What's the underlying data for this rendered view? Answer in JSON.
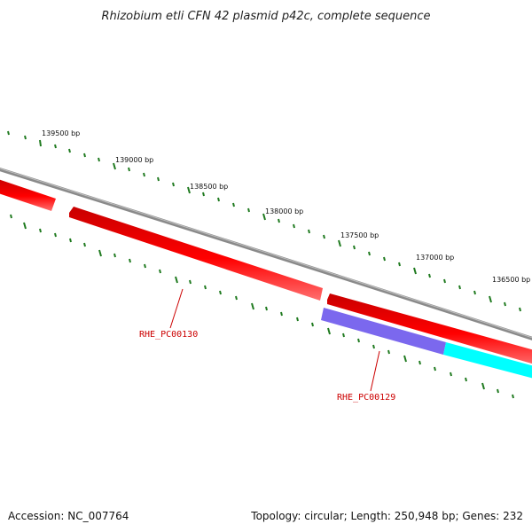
{
  "header": {
    "title": "Rhizobium etli CFN 42 plasmid p42c, complete sequence"
  },
  "footer": {
    "accession": "Accession: NC_007764",
    "summary": "Topology: circular; Length: 250,948 bp; Genes: 232"
  },
  "colors": {
    "backbone": "#8a8a8a",
    "tick": "#1f7a1f",
    "gene_red": "#ff0000",
    "gene_purple": "#7b68ee",
    "gene_cyan": "#00ffff",
    "label_red": "#cc0000"
  },
  "scale": {
    "tick_labels": [
      "139500 bp",
      "139000 bp",
      "138500 bp",
      "138000 bp",
      "137500 bp",
      "137000 bp",
      "136500 bp"
    ]
  },
  "genes": [
    {
      "label": "RHE_PC00130",
      "color": "red"
    },
    {
      "label": "RHE_PC00129",
      "color": "purple"
    }
  ]
}
